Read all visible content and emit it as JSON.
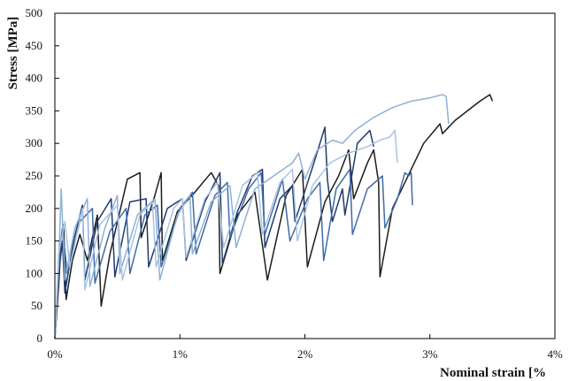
{
  "chart_data": {
    "type": "line",
    "title": "",
    "xlabel": "Nominal strain [%",
    "ylabel": "Stress [MPa]",
    "xlim": [
      0,
      4
    ],
    "ylim": [
      0,
      500
    ],
    "x_ticks": [
      0,
      1,
      2,
      3,
      4
    ],
    "x_tick_labels": [
      "0%",
      "1%",
      "2%",
      "3%",
      "4%"
    ],
    "y_ticks": [
      0,
      50,
      100,
      150,
      200,
      250,
      300,
      350,
      400,
      450,
      500
    ],
    "y_tick_labels": [
      "0",
      "50",
      "100",
      "150",
      "200",
      "250",
      "300",
      "350",
      "400",
      "450",
      "500"
    ],
    "grid": false,
    "legend": "none",
    "colors": {
      "black": "#1c1c1c",
      "navy": "#1f3a6e",
      "mid_blue": "#3f6aa8",
      "light_blue": "#8fb0d6",
      "pale_blue": "#aac3e2",
      "axis": "#000000"
    },
    "series": [
      {
        "color": "#1c1c1c",
        "points": [
          [
            0,
            0
          ],
          [
            0.03,
            80
          ],
          [
            0.05,
            150
          ],
          [
            0.07,
            175
          ],
          [
            0.09,
            60
          ],
          [
            0.14,
            120
          ],
          [
            0.2,
            160
          ],
          [
            0.26,
            120
          ],
          [
            0.34,
            190
          ],
          [
            0.37,
            50
          ],
          [
            0.44,
            130
          ],
          [
            0.58,
            245
          ],
          [
            0.68,
            255
          ],
          [
            0.69,
            155
          ],
          [
            0.8,
            220
          ],
          [
            0.85,
            255
          ],
          [
            0.86,
            120
          ],
          [
            0.98,
            195
          ],
          [
            1.12,
            225
          ],
          [
            1.25,
            255
          ],
          [
            1.31,
            235
          ],
          [
            1.32,
            100
          ],
          [
            1.46,
            190
          ],
          [
            1.6,
            225
          ],
          [
            1.7,
            90
          ],
          [
            1.85,
            220
          ],
          [
            1.98,
            260
          ],
          [
            2.0,
            185
          ],
          [
            2.02,
            110
          ],
          [
            2.16,
            210
          ],
          [
            2.27,
            250
          ],
          [
            2.35,
            290
          ],
          [
            2.39,
            215
          ],
          [
            2.5,
            270
          ],
          [
            2.55,
            290
          ],
          [
            2.59,
            240
          ],
          [
            2.6,
            95
          ],
          [
            2.7,
            200
          ],
          [
            2.85,
            260
          ],
          [
            2.95,
            300
          ],
          [
            3.08,
            330
          ],
          [
            3.1,
            315
          ],
          [
            3.2,
            335
          ],
          [
            3.3,
            350
          ],
          [
            3.4,
            365
          ],
          [
            3.48,
            375
          ],
          [
            3.5,
            365
          ]
        ]
      },
      {
        "color": "#1f3a6e",
        "points": [
          [
            0,
            0
          ],
          [
            0.03,
            100
          ],
          [
            0.06,
            150
          ],
          [
            0.08,
            70
          ],
          [
            0.15,
            150
          ],
          [
            0.22,
            205
          ],
          [
            0.24,
            90
          ],
          [
            0.34,
            180
          ],
          [
            0.45,
            215
          ],
          [
            0.48,
            95
          ],
          [
            0.6,
            210
          ],
          [
            0.73,
            215
          ],
          [
            0.75,
            110
          ],
          [
            0.9,
            200
          ],
          [
            1.02,
            215
          ],
          [
            1.05,
            120
          ],
          [
            1.2,
            210
          ],
          [
            1.32,
            255
          ],
          [
            1.34,
            115
          ],
          [
            1.46,
            195
          ],
          [
            1.58,
            250
          ],
          [
            1.66,
            260
          ],
          [
            1.68,
            140
          ],
          [
            1.8,
            215
          ],
          [
            1.9,
            235
          ],
          [
            1.92,
            180
          ],
          [
            1.98,
            215
          ],
          [
            2.08,
            275
          ],
          [
            2.16,
            325
          ],
          [
            2.18,
            245
          ],
          [
            2.22,
            180
          ],
          [
            2.3,
            230
          ],
          [
            2.32,
            190
          ],
          [
            2.42,
            300
          ],
          [
            2.52,
            320
          ],
          [
            2.55,
            295
          ]
        ]
      },
      {
        "color": "#3f6aa8",
        "points": [
          [
            0,
            0
          ],
          [
            0.03,
            120
          ],
          [
            0.06,
            170
          ],
          [
            0.1,
            100
          ],
          [
            0.2,
            180
          ],
          [
            0.3,
            200
          ],
          [
            0.32,
            85
          ],
          [
            0.44,
            165
          ],
          [
            0.57,
            200
          ],
          [
            0.6,
            100
          ],
          [
            0.72,
            190
          ],
          [
            0.82,
            205
          ],
          [
            0.85,
            110
          ],
          [
            1.0,
            200
          ],
          [
            1.1,
            225
          ],
          [
            1.13,
            130
          ],
          [
            1.28,
            220
          ],
          [
            1.38,
            240
          ],
          [
            1.4,
            155
          ],
          [
            1.55,
            230
          ],
          [
            1.65,
            255
          ],
          [
            1.68,
            160
          ],
          [
            1.82,
            245
          ],
          [
            1.88,
            150
          ],
          [
            2.02,
            215
          ],
          [
            2.12,
            240
          ],
          [
            2.15,
            120
          ],
          [
            2.25,
            230
          ],
          [
            2.36,
            260
          ],
          [
            2.38,
            160
          ],
          [
            2.5,
            230
          ],
          [
            2.62,
            250
          ],
          [
            2.64,
            170
          ],
          [
            2.74,
            215
          ],
          [
            2.8,
            255
          ],
          [
            2.83,
            250
          ],
          [
            2.85,
            255
          ],
          [
            2.86,
            205
          ]
        ]
      },
      {
        "color": "#8fb0d6",
        "points": [
          [
            0,
            0
          ],
          [
            0.03,
            110
          ],
          [
            0.05,
            230
          ],
          [
            0.08,
            90
          ],
          [
            0.16,
            170
          ],
          [
            0.26,
            215
          ],
          [
            0.28,
            80
          ],
          [
            0.4,
            170
          ],
          [
            0.5,
            220
          ],
          [
            0.52,
            100
          ],
          [
            0.66,
            190
          ],
          [
            0.8,
            215
          ],
          [
            0.84,
            90
          ],
          [
            0.98,
            190
          ],
          [
            1.08,
            220
          ],
          [
            1.1,
            130
          ],
          [
            1.25,
            210
          ],
          [
            1.4,
            235
          ],
          [
            1.45,
            140
          ],
          [
            1.6,
            230
          ],
          [
            1.75,
            250
          ],
          [
            1.9,
            270
          ],
          [
            1.95,
            285
          ],
          [
            2.0,
            245
          ],
          [
            2.1,
            290
          ],
          [
            2.22,
            305
          ],
          [
            2.3,
            300
          ],
          [
            2.4,
            320
          ],
          [
            2.55,
            340
          ],
          [
            2.7,
            355
          ],
          [
            2.85,
            365
          ],
          [
            3.0,
            370
          ],
          [
            3.1,
            375
          ],
          [
            3.13,
            372
          ],
          [
            3.15,
            330
          ]
        ]
      },
      {
        "color": "#aac3e2",
        "points": [
          [
            0,
            0
          ],
          [
            0.03,
            130
          ],
          [
            0.08,
            180
          ],
          [
            0.12,
            110
          ],
          [
            0.22,
            200
          ],
          [
            0.24,
            75
          ],
          [
            0.36,
            175
          ],
          [
            0.5,
            205
          ],
          [
            0.54,
            90
          ],
          [
            0.68,
            190
          ],
          [
            0.78,
            210
          ],
          [
            0.81,
            110
          ],
          [
            0.95,
            200
          ],
          [
            1.02,
            215
          ],
          [
            1.05,
            125
          ],
          [
            1.2,
            215
          ],
          [
            1.3,
            240
          ],
          [
            1.35,
            140
          ],
          [
            1.5,
            235
          ],
          [
            1.62,
            255
          ],
          [
            1.66,
            160
          ],
          [
            1.8,
            240
          ],
          [
            1.9,
            260
          ],
          [
            1.94,
            150
          ],
          [
            2.06,
            235
          ],
          [
            2.2,
            270
          ],
          [
            2.35,
            285
          ],
          [
            2.5,
            295
          ],
          [
            2.6,
            305
          ],
          [
            2.68,
            310
          ],
          [
            2.72,
            320
          ],
          [
            2.74,
            270
          ]
        ]
      }
    ]
  }
}
